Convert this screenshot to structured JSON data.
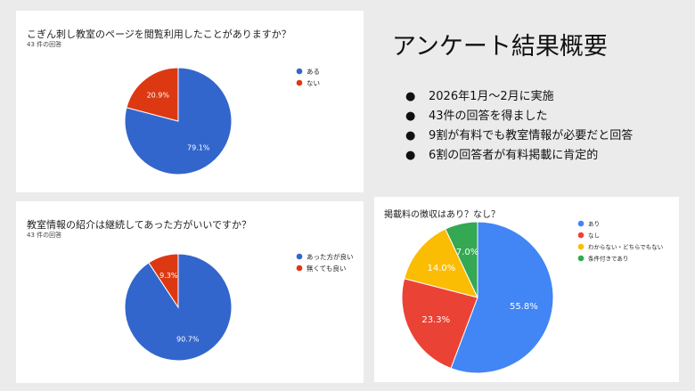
{
  "heading": "アンケート結果概要",
  "bullet_marker": "●",
  "bullets": [
    "2026年1月～2月に実施",
    "43件の回答を得ました",
    "9割が有料でも教室情報が必要だと回答",
    "6割の回答者が有料掲載に肯定的"
  ],
  "chart_data": [
    {
      "type": "pie",
      "title": "こぎん刺し教室のページを閲覧利用したことがありますか？",
      "subtitle": "43 件の回答",
      "categories": [
        "ある",
        "ない"
      ],
      "values": [
        79.1,
        20.9
      ],
      "labels": [
        "79.1%",
        "20.9%"
      ],
      "colors": [
        "#3366cc",
        "#dc3912"
      ],
      "legend": "right"
    },
    {
      "type": "pie",
      "title": "教室情報の紹介は継続してあった方がいいですか？",
      "subtitle": "43 件の回答",
      "categories": [
        "あった方が良い",
        "無くても良い"
      ],
      "values": [
        90.7,
        9.3
      ],
      "labels": [
        "90.7%",
        "9.3%"
      ],
      "colors": [
        "#3366cc",
        "#dc3912"
      ],
      "legend": "right"
    },
    {
      "type": "pie",
      "title": "掲載料の徴収はあり？なし？",
      "subtitle": "",
      "categories": [
        "あり",
        "なし",
        "わからない・どちらでもない",
        "条件付きであり"
      ],
      "values": [
        55.8,
        23.3,
        14.0,
        7.0
      ],
      "labels": [
        "55.8%",
        "23.3%",
        "14.0%",
        "7.0%"
      ],
      "colors": [
        "#4285f4",
        "#ea4335",
        "#fbbc04",
        "#34a853"
      ],
      "legend": "right"
    }
  ]
}
